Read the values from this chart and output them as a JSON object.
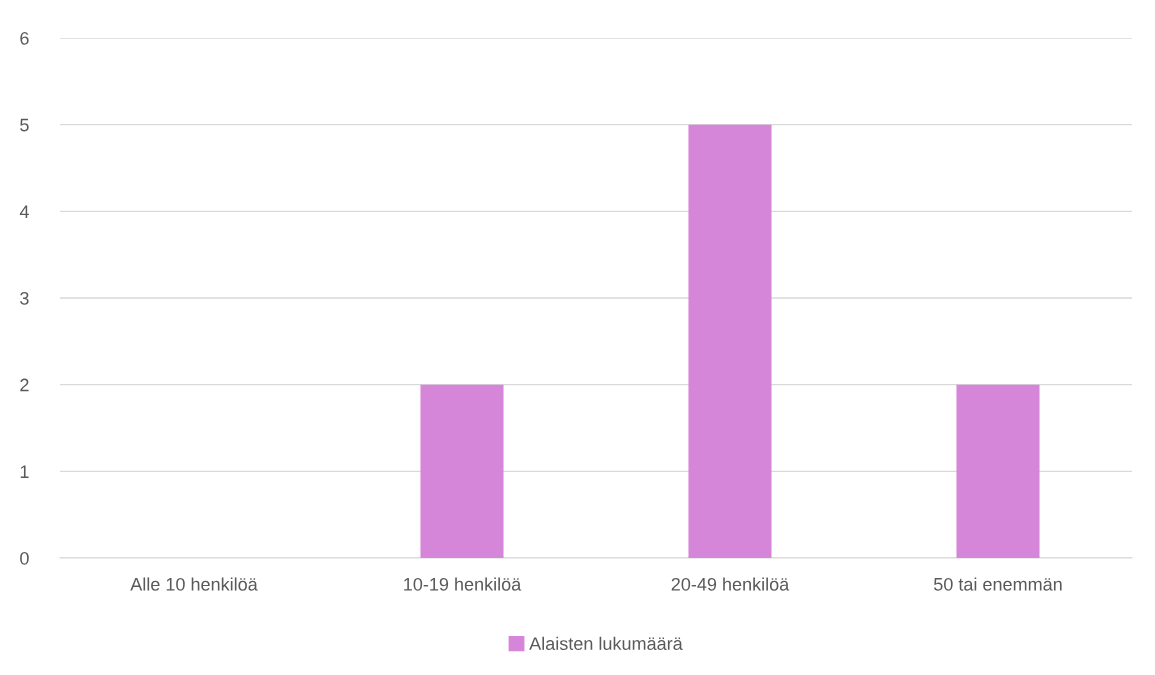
{
  "chart_data": {
    "type": "bar",
    "categories": [
      "Alle 10 henkilöä",
      "10-19 henkilöä",
      "20-49 henkilöä",
      "50 tai enemmän"
    ],
    "series": [
      {
        "name": "Alaisten lukumäärä",
        "color": "#d586d8",
        "values": [
          0,
          2,
          5,
          2
        ]
      }
    ],
    "ylim": [
      0,
      6
    ],
    "yticks": [
      0,
      1,
      2,
      3,
      4,
      5,
      6
    ],
    "grid": "y",
    "legend": "bottom"
  }
}
